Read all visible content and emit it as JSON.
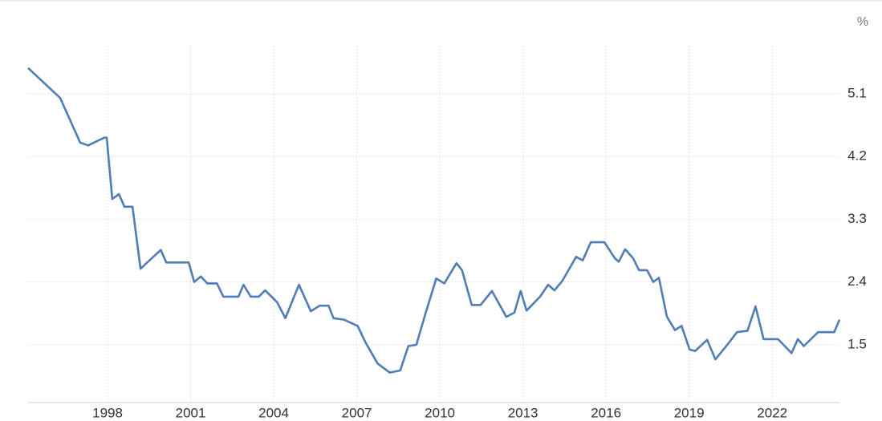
{
  "chart_data": {
    "type": "line",
    "y_unit_label": "%",
    "x": [
      1995.13,
      1996.29,
      1997.01,
      1997.3,
      1997.88,
      1997.97,
      1998.17,
      1998.41,
      1998.61,
      1998.9,
      1999.19,
      1999.92,
      2000.12,
      2000.93,
      2001.13,
      2001.37,
      2001.6,
      2001.95,
      2002.18,
      2002.73,
      2002.91,
      2003.17,
      2003.46,
      2003.69,
      2004.12,
      2004.42,
      2004.91,
      2005.34,
      2005.66,
      2005.98,
      2006.16,
      2006.53,
      2007.03,
      2007.32,
      2007.75,
      2008.19,
      2008.57,
      2008.86,
      2009.15,
      2009.49,
      2009.87,
      2010.16,
      2010.6,
      2010.8,
      2011.15,
      2011.47,
      2011.88,
      2012.4,
      2012.69,
      2012.92,
      2013.13,
      2013.62,
      2013.91,
      2014.14,
      2014.43,
      2014.92,
      2015.16,
      2015.45,
      2015.94,
      2016.32,
      2016.46,
      2016.69,
      2016.98,
      2017.19,
      2017.48,
      2017.71,
      2017.91,
      2018.2,
      2018.49,
      2018.73,
      2019.02,
      2019.22,
      2019.65,
      2019.95,
      2020.38,
      2020.73,
      2021.11,
      2021.4,
      2021.69,
      2022.21,
      2022.7,
      2022.93,
      2023.14,
      2023.66,
      2024.24,
      2024.43
    ],
    "series": [
      {
        "color": "#4f7db5",
        "values": [
          5.47,
          5.04,
          4.4,
          4.36,
          4.47,
          4.47,
          3.59,
          3.66,
          3.48,
          3.48,
          2.59,
          2.86,
          2.68,
          2.68,
          2.4,
          2.48,
          2.38,
          2.38,
          2.19,
          2.19,
          2.36,
          2.19,
          2.19,
          2.28,
          2.11,
          1.88,
          2.36,
          1.98,
          2.06,
          2.06,
          1.88,
          1.86,
          1.77,
          1.53,
          1.23,
          1.1,
          1.13,
          1.48,
          1.5,
          1.96,
          2.45,
          2.38,
          2.67,
          2.57,
          2.07,
          2.07,
          2.27,
          1.9,
          1.96,
          2.27,
          1.99,
          2.19,
          2.36,
          2.28,
          2.42,
          2.76,
          2.71,
          2.97,
          2.97,
          2.74,
          2.69,
          2.87,
          2.74,
          2.57,
          2.57,
          2.4,
          2.46,
          1.9,
          1.71,
          1.77,
          1.43,
          1.41,
          1.57,
          1.29,
          1.5,
          1.68,
          1.7,
          2.05,
          1.58,
          1.58,
          1.38,
          1.58,
          1.48,
          1.68,
          1.68,
          1.86
        ]
      }
    ],
    "xlim": [
      1995.13,
      2024.43
    ],
    "xticks": [
      1998,
      2001,
      2004,
      2007,
      2010,
      2013,
      2016,
      2019,
      2022
    ],
    "ylim": [
      0.67,
      5.79
    ],
    "yticks": [
      1.5,
      2.4,
      3.3,
      4.2,
      5.1
    ],
    "grid": true
  }
}
